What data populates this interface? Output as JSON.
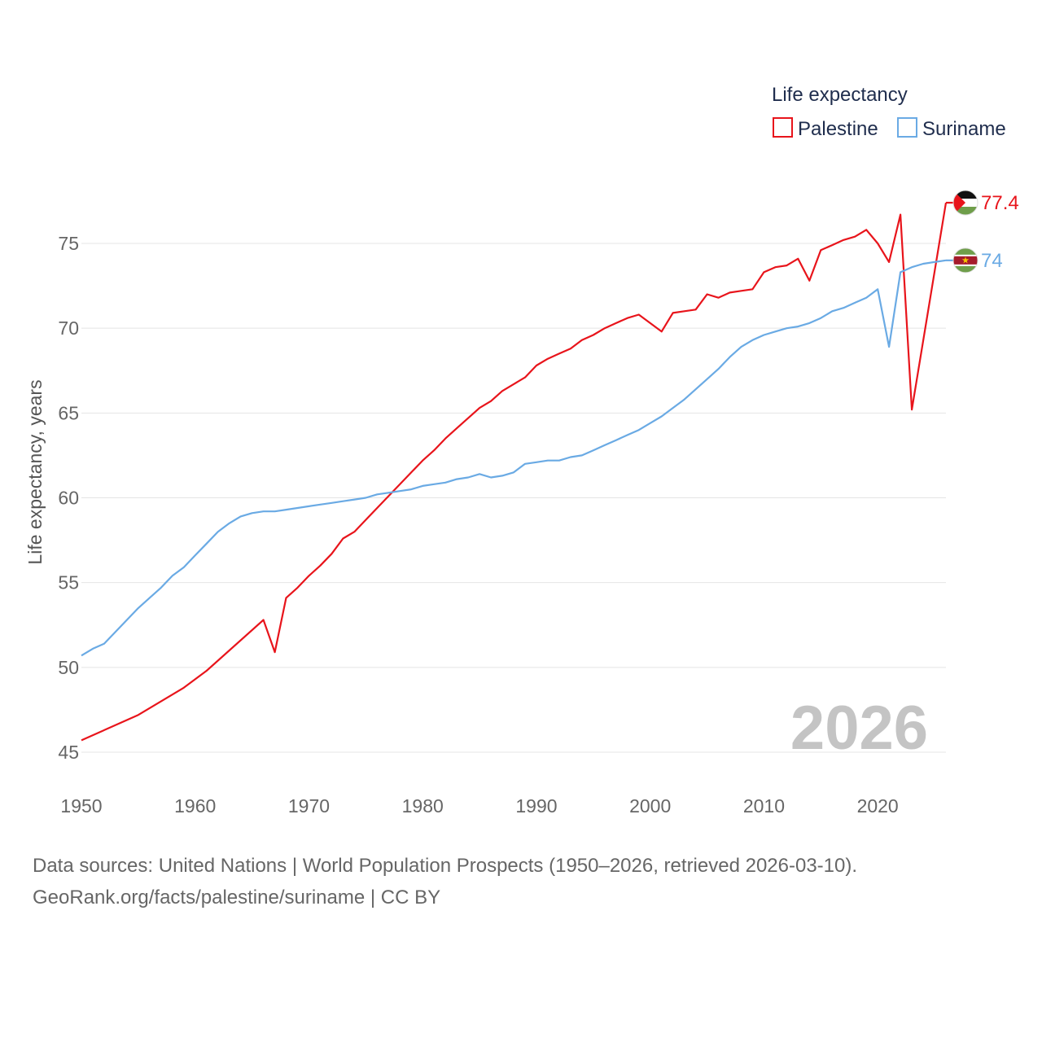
{
  "chart_data": {
    "type": "line",
    "legend_title": "Life expectancy",
    "ylabel": "Life expectancy, years",
    "xlim": [
      1950,
      2026
    ],
    "ylim": [
      45,
      78
    ],
    "yticks": [
      45,
      50,
      55,
      60,
      65,
      70,
      75
    ],
    "xticks": [
      1950,
      1960,
      1970,
      1980,
      1990,
      2000,
      2010,
      2020
    ],
    "current_year": "2026",
    "series": [
      {
        "name": "Palestine",
        "color": "#e8141b",
        "end_label": "77.4",
        "flag": "palestine-flag-icon",
        "points": [
          [
            1950,
            45.7
          ],
          [
            1955,
            47.2
          ],
          [
            1959,
            48.8
          ],
          [
            1961,
            49.8
          ],
          [
            1966,
            52.8
          ],
          [
            1967,
            50.9
          ],
          [
            1968,
            54.1
          ],
          [
            1969,
            54.7
          ],
          [
            1970,
            55.4
          ],
          [
            1971,
            56.0
          ],
          [
            1972,
            56.7
          ],
          [
            1973,
            57.6
          ],
          [
            1974,
            58.0
          ],
          [
            1975,
            58.7
          ],
          [
            1976,
            59.4
          ],
          [
            1977,
            60.1
          ],
          [
            1978,
            60.8
          ],
          [
            1979,
            61.5
          ],
          [
            1980,
            62.2
          ],
          [
            1981,
            62.8
          ],
          [
            1982,
            63.5
          ],
          [
            1983,
            64.1
          ],
          [
            1984,
            64.7
          ],
          [
            1985,
            65.3
          ],
          [
            1986,
            65.7
          ],
          [
            1987,
            66.3
          ],
          [
            1988,
            66.7
          ],
          [
            1989,
            67.1
          ],
          [
            1990,
            67.8
          ],
          [
            1991,
            68.2
          ],
          [
            1992,
            68.5
          ],
          [
            1993,
            68.8
          ],
          [
            1994,
            69.3
          ],
          [
            1995,
            69.6
          ],
          [
            1996,
            70.0
          ],
          [
            1997,
            70.3
          ],
          [
            1998,
            70.6
          ],
          [
            1999,
            70.8
          ],
          [
            2000,
            70.3
          ],
          [
            2001,
            69.8
          ],
          [
            2002,
            70.9
          ],
          [
            2003,
            71.0
          ],
          [
            2004,
            71.1
          ],
          [
            2005,
            72.0
          ],
          [
            2006,
            71.8
          ],
          [
            2007,
            72.1
          ],
          [
            2008,
            72.2
          ],
          [
            2009,
            72.3
          ],
          [
            2010,
            73.3
          ],
          [
            2011,
            73.6
          ],
          [
            2012,
            73.7
          ],
          [
            2013,
            74.1
          ],
          [
            2014,
            72.8
          ],
          [
            2015,
            74.6
          ],
          [
            2016,
            74.9
          ],
          [
            2017,
            75.2
          ],
          [
            2018,
            75.4
          ],
          [
            2019,
            75.8
          ],
          [
            2020,
            75.0
          ],
          [
            2021,
            73.9
          ],
          [
            2022,
            76.7
          ],
          [
            2023,
            65.2
          ],
          [
            2026,
            77.4
          ]
        ]
      },
      {
        "name": "Suriname",
        "color": "#6aaae4",
        "end_label": "74",
        "flag": "suriname-flag-icon",
        "points": [
          [
            1950,
            50.7
          ],
          [
            1951,
            51.1
          ],
          [
            1952,
            51.4
          ],
          [
            1953,
            52.1
          ],
          [
            1954,
            52.8
          ],
          [
            1955,
            53.5
          ],
          [
            1956,
            54.1
          ],
          [
            1957,
            54.7
          ],
          [
            1958,
            55.4
          ],
          [
            1959,
            55.9
          ],
          [
            1960,
            56.6
          ],
          [
            1961,
            57.3
          ],
          [
            1962,
            58.0
          ],
          [
            1963,
            58.5
          ],
          [
            1964,
            58.9
          ],
          [
            1965,
            59.1
          ],
          [
            1966,
            59.2
          ],
          [
            1967,
            59.2
          ],
          [
            1968,
            59.3
          ],
          [
            1969,
            59.4
          ],
          [
            1970,
            59.5
          ],
          [
            1971,
            59.6
          ],
          [
            1972,
            59.7
          ],
          [
            1973,
            59.8
          ],
          [
            1974,
            59.9
          ],
          [
            1975,
            60.0
          ],
          [
            1976,
            60.2
          ],
          [
            1977,
            60.3
          ],
          [
            1978,
            60.4
          ],
          [
            1979,
            60.5
          ],
          [
            1980,
            60.7
          ],
          [
            1981,
            60.8
          ],
          [
            1982,
            60.9
          ],
          [
            1983,
            61.1
          ],
          [
            1984,
            61.2
          ],
          [
            1985,
            61.4
          ],
          [
            1986,
            61.2
          ],
          [
            1987,
            61.3
          ],
          [
            1988,
            61.5
          ],
          [
            1989,
            62.0
          ],
          [
            1990,
            62.1
          ],
          [
            1991,
            62.2
          ],
          [
            1992,
            62.2
          ],
          [
            1993,
            62.4
          ],
          [
            1994,
            62.5
          ],
          [
            1995,
            62.8
          ],
          [
            1996,
            63.1
          ],
          [
            1997,
            63.4
          ],
          [
            1998,
            63.7
          ],
          [
            1999,
            64.0
          ],
          [
            2000,
            64.4
          ],
          [
            2001,
            64.8
          ],
          [
            2002,
            65.3
          ],
          [
            2003,
            65.8
          ],
          [
            2004,
            66.4
          ],
          [
            2005,
            67.0
          ],
          [
            2006,
            67.6
          ],
          [
            2007,
            68.3
          ],
          [
            2008,
            68.9
          ],
          [
            2009,
            69.3
          ],
          [
            2010,
            69.6
          ],
          [
            2011,
            69.8
          ],
          [
            2012,
            70.0
          ],
          [
            2013,
            70.1
          ],
          [
            2014,
            70.3
          ],
          [
            2015,
            70.6
          ],
          [
            2016,
            71.0
          ],
          [
            2017,
            71.2
          ],
          [
            2018,
            71.5
          ],
          [
            2019,
            71.8
          ],
          [
            2020,
            72.3
          ],
          [
            2021,
            68.9
          ],
          [
            2022,
            73.3
          ],
          [
            2023,
            73.6
          ],
          [
            2024,
            73.8
          ],
          [
            2025,
            73.9
          ],
          [
            2026,
            74.0
          ]
        ]
      }
    ]
  },
  "source": {
    "line1": "Data sources: United Nations | World Population Prospects (1950–2026, retrieved 2026-03-10).",
    "line2": "GeoRank.org/facts/palestine/suriname | CC BY"
  }
}
